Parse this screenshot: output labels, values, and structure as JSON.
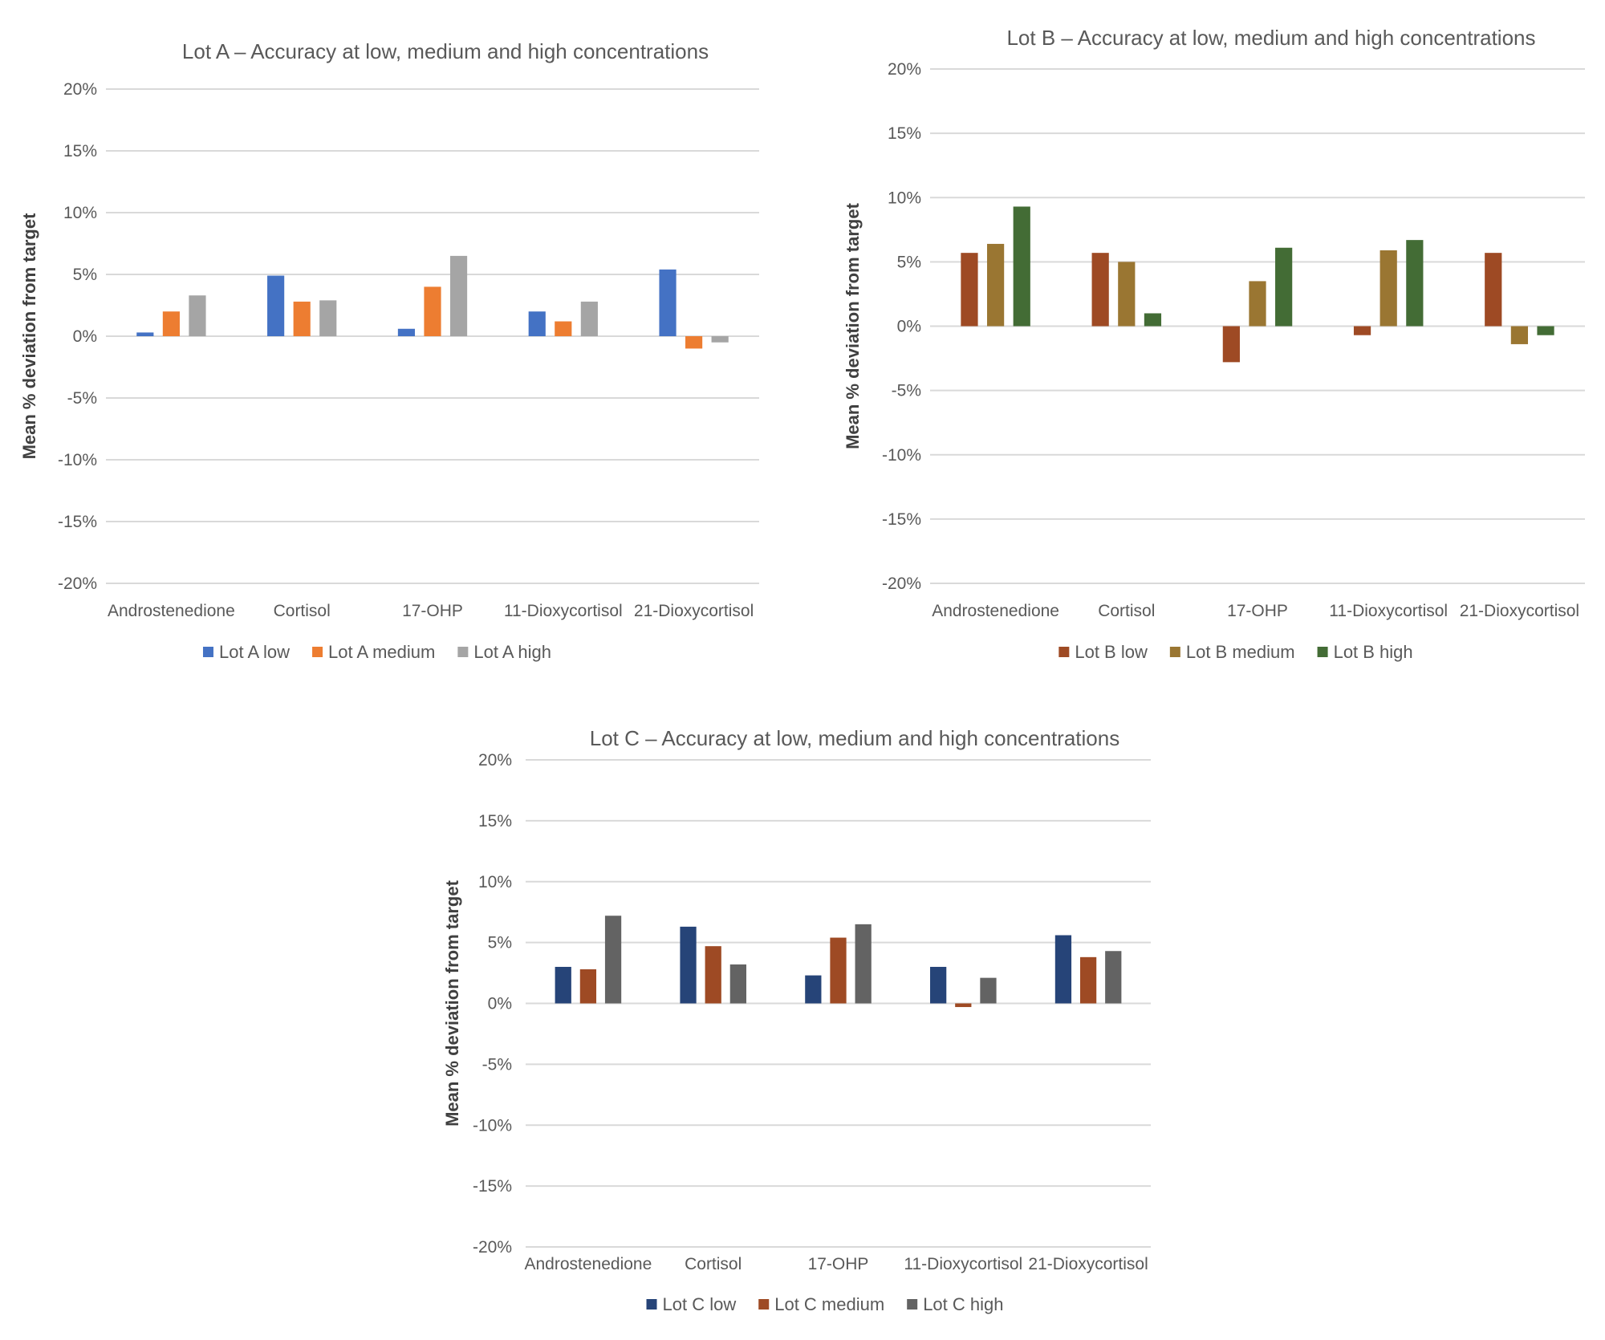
{
  "chart_data": [
    {
      "type": "bar",
      "title": "Lot A – Accuracy at low, medium and high concentrations",
      "xlabel": "",
      "ylabel": "Mean % deviation from target",
      "ylim": [
        -20,
        20
      ],
      "yticks": [
        20,
        15,
        10,
        5,
        0,
        -5,
        -10,
        -15,
        -20
      ],
      "ytick_labels": [
        "20%",
        "15%",
        "10%",
        "5%",
        "0%",
        "-5%",
        "-10%",
        "-15%",
        "-20%"
      ],
      "grid": true,
      "legend_position": "bottom",
      "categories": [
        "Androstenedione",
        "Cortisol",
        "17-OHP",
        "11-Dioxycortisol",
        "21-Dioxycortisol"
      ],
      "series": [
        {
          "name": "Lot A low",
          "color": "#4472C4",
          "values": [
            0.3,
            4.9,
            0.6,
            2.0,
            5.4
          ]
        },
        {
          "name": "Lot A medium",
          "color": "#ED7D31",
          "values": [
            2.0,
            2.8,
            4.0,
            1.2,
            -1.0
          ]
        },
        {
          "name": "Lot A high",
          "color": "#A5A5A5",
          "values": [
            3.3,
            2.9,
            6.5,
            2.8,
            -0.5
          ]
        }
      ]
    },
    {
      "type": "bar",
      "title": "Lot B – Accuracy at low, medium and high concentrations",
      "xlabel": "",
      "ylabel": "Mean % deviation from target",
      "ylim": [
        -20,
        20
      ],
      "yticks": [
        20,
        15,
        10,
        5,
        0,
        -5,
        -10,
        -15,
        -20
      ],
      "ytick_labels": [
        "20%",
        "15%",
        "10%",
        "5%",
        "0%",
        "-5%",
        "-10%",
        "-15%",
        "-20%"
      ],
      "grid": true,
      "legend_position": "bottom",
      "categories": [
        "Androstenedione",
        "Cortisol",
        "17-OHP",
        "11-Dioxycortisol",
        "21-Dioxycortisol"
      ],
      "series": [
        {
          "name": "Lot B low",
          "color": "#9E4A24",
          "values": [
            5.7,
            5.7,
            -2.8,
            -0.7,
            5.7
          ]
        },
        {
          "name": "Lot B medium",
          "color": "#9A7632",
          "values": [
            6.4,
            5.0,
            3.5,
            5.9,
            -1.4
          ]
        },
        {
          "name": "Lot B high",
          "color": "#436C35",
          "values": [
            9.3,
            1.0,
            6.1,
            6.7,
            -0.7
          ]
        }
      ]
    },
    {
      "type": "bar",
      "title": "Lot C – Accuracy at low, medium and high concentrations",
      "xlabel": "",
      "ylabel": "Mean % deviation from target",
      "ylim": [
        -20,
        20
      ],
      "yticks": [
        20,
        15,
        10,
        5,
        0,
        -5,
        -10,
        -15,
        -20
      ],
      "ytick_labels": [
        "20%",
        "15%",
        "10%",
        "5%",
        "0%",
        "-5%",
        "-10%",
        "-15%",
        "-20%"
      ],
      "grid": true,
      "legend_position": "bottom",
      "categories": [
        "Androstenedione",
        "Cortisol",
        "17-OHP",
        "11-Dioxycortisol",
        "21-Dioxycortisol"
      ],
      "series": [
        {
          "name": "Lot C low",
          "color": "#264478",
          "values": [
            3.0,
            6.3,
            2.3,
            3.0,
            5.6
          ]
        },
        {
          "name": "Lot C medium",
          "color": "#9E4A24",
          "values": [
            2.8,
            4.7,
            5.4,
            -0.3,
            3.8
          ]
        },
        {
          "name": "Lot C high",
          "color": "#636363",
          "values": [
            7.2,
            3.2,
            6.5,
            2.1,
            4.3
          ]
        }
      ]
    }
  ],
  "colors": {
    "grid": "#D9D9D9",
    "text": "#595959",
    "title": "#595959",
    "ylabel": "#404040"
  }
}
